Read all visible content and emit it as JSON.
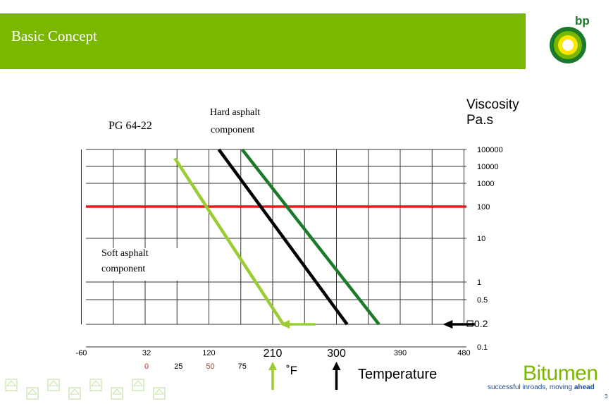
{
  "header": {
    "title": "Basic Concept",
    "color": "#7ab800"
  },
  "logo": {
    "text": "bp",
    "text_color": "#1a7a2a"
  },
  "labels": {
    "pg_grade": "PG 64-22",
    "hard_line1": "Hard asphalt",
    "hard_line2": "component",
    "soft_line1": "Soft asphalt",
    "soft_line2": "component",
    "viscosity_line1": "Viscosity",
    "viscosity_line2": "Pa.s",
    "temperature": "Temperature",
    "fahrenheit_unit": "˚F"
  },
  "footer": {
    "brand": "Bitumen",
    "tagline_plain": "successful inroads, moving ",
    "tagline_bold": "ahead",
    "page_number": "3"
  },
  "chart_data": {
    "type": "line",
    "y_scale": "log",
    "y_ticks": [
      {
        "label": "100000",
        "value": 100000
      },
      {
        "label": "10000",
        "value": 10000
      },
      {
        "label": "1000",
        "value": 1000
      },
      {
        "label": "100",
        "value": 100
      },
      {
        "label": "10",
        "value": 10
      },
      {
        "label": "1",
        "value": 1
      },
      {
        "label": "0.5",
        "value": 0.5
      },
      {
        "label": "0.2",
        "value": 0.2
      },
      {
        "label": "0.1",
        "value": 0.1
      }
    ],
    "x_ticks_f": [
      {
        "label": "-60",
        "value": -60,
        "color": "#000000"
      },
      {
        "label": "32",
        "value": 32,
        "color": "#000000"
      },
      {
        "label": "120",
        "value": 120,
        "color": "#000000"
      },
      {
        "label": "210",
        "value": 210,
        "color": "#000000"
      },
      {
        "label": "300",
        "value": 300,
        "color": "#000000"
      },
      {
        "label": "390",
        "value": 390,
        "color": "#000000"
      },
      {
        "label": "480",
        "value": 480,
        "color": "#000000"
      }
    ],
    "x_ticks_c": [
      {
        "label": "0",
        "value": 0,
        "color": "#c0392b"
      },
      {
        "label": "25",
        "value": 25,
        "color": "#000000"
      },
      {
        "label": "50",
        "value": 50,
        "color": "#c0392b"
      },
      {
        "label": "75",
        "value": 75,
        "color": "#000000"
      }
    ],
    "reference_line": {
      "value": 100,
      "color": "#e31b1b"
    },
    "series": [
      {
        "key": "soft",
        "color": "#9acd32",
        "points": [
          [
            72,
            30000
          ],
          [
            225,
            0.2
          ]
        ]
      },
      {
        "key": "blend",
        "color": "#000000",
        "points": [
          [
            134,
            100000
          ],
          [
            315,
            0.2
          ]
        ]
      },
      {
        "key": "hard",
        "color": "#1a7a2a",
        "points": [
          [
            167,
            100000
          ],
          [
            360,
            0.2
          ]
        ]
      }
    ],
    "arrows": [
      {
        "key": "soft-arrow",
        "color": "#9acd32",
        "from_x": 270,
        "to_x": 220,
        "y": 0.2
      },
      {
        "key": "visc-arrow",
        "color": "#000000",
        "from_x": 495,
        "to_x": 450,
        "y": 0.2
      }
    ],
    "up_arrows": [
      {
        "key": "up-green",
        "color": "#9acd32",
        "x": 210
      },
      {
        "key": "up-black",
        "color": "#000000",
        "x": 300
      }
    ]
  }
}
